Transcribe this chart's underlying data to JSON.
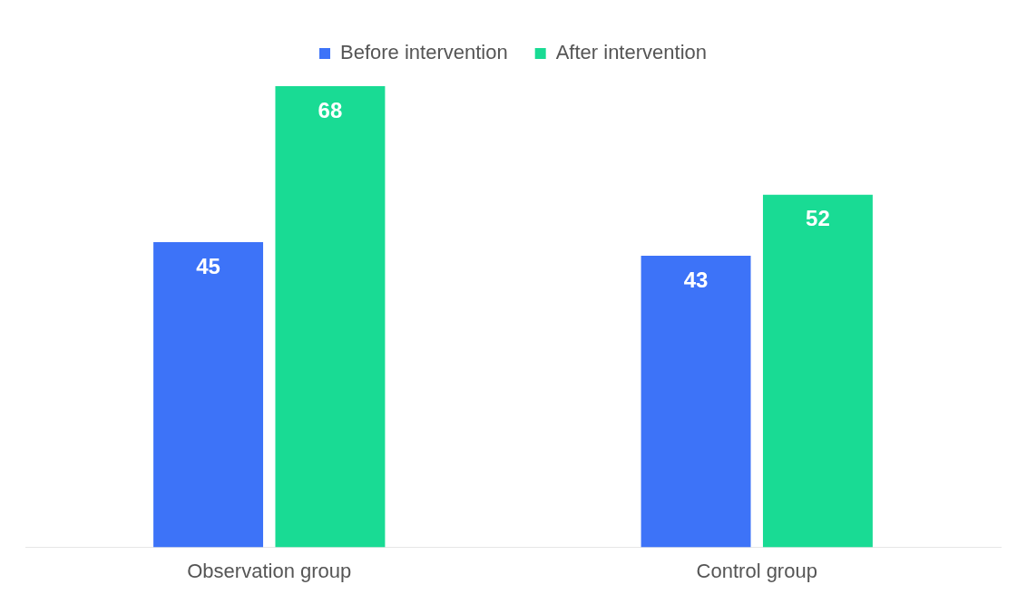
{
  "chart_data": {
    "type": "bar",
    "categories": [
      "Observation group",
      "Control group"
    ],
    "series": [
      {
        "name": "Before intervention",
        "color": "#3d73f8",
        "values": [
          45,
          43
        ]
      },
      {
        "name": "After intervention",
        "color": "#19db94",
        "values": [
          68,
          52
        ]
      }
    ],
    "data_labels": true,
    "legend": "top",
    "grid": false,
    "tick_labels": "x"
  }
}
